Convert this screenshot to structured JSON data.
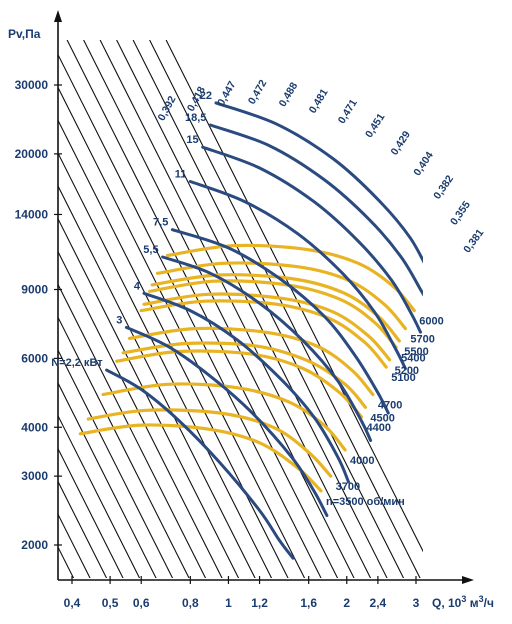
{
  "chart_data": {
    "type": "line",
    "title": "",
    "ylabel": "Pv,Па",
    "xlabel": "Q, 10³ м³/ч",
    "x_scale": "log",
    "y_scale": "log",
    "xlim": [
      0.36,
      3.5
    ],
    "ylim": [
      1800,
      38000
    ],
    "x_ticks": [
      0.4,
      0.5,
      0.6,
      0.8,
      1,
      1.2,
      1.6,
      2,
      2.4,
      3
    ],
    "x_tick_labels": [
      "0,4",
      "0,5",
      "0,6",
      "0,8",
      "1",
      "1,2",
      "1,6",
      "2",
      "2,4",
      "3"
    ],
    "y_ticks": [
      2000,
      3000,
      4000,
      6000,
      9000,
      14000,
      20000,
      30000
    ],
    "y_tick_labels": [
      "2000",
      "3000",
      "4000",
      "6000",
      "9000",
      "14000",
      "20000",
      "30000"
    ],
    "grid": false,
    "colors": {
      "speed": "#e8b424",
      "power": "#2a4a80",
      "system": "#111111",
      "text": "#1a3c6e"
    },
    "speed_curves": [
      {
        "label": "n=3500 об/мин",
        "points": [
          [
            0.42,
            3850
          ],
          [
            0.6,
            4050
          ],
          [
            0.9,
            3950
          ],
          [
            1.2,
            3650
          ],
          [
            1.5,
            3150
          ],
          [
            1.72,
            2750
          ]
        ]
      },
      {
        "label": "3700",
        "points": [
          [
            0.44,
            4200
          ],
          [
            0.62,
            4420
          ],
          [
            0.95,
            4350
          ],
          [
            1.3,
            4000
          ],
          [
            1.6,
            3450
          ],
          [
            1.82,
            3000
          ]
        ]
      },
      {
        "label": "4000",
        "points": [
          [
            0.48,
            4850
          ],
          [
            0.7,
            5150
          ],
          [
            1.05,
            5050
          ],
          [
            1.42,
            4650
          ],
          [
            1.75,
            4050
          ],
          [
            1.98,
            3500
          ]
        ]
      },
      {
        "label": "4400",
        "points": [
          [
            0.52,
            5900
          ],
          [
            0.75,
            6250
          ],
          [
            1.15,
            6150
          ],
          [
            1.55,
            5650
          ],
          [
            1.92,
            4900
          ],
          [
            2.18,
            4250
          ]
        ]
      },
      {
        "label": "4500",
        "points": [
          [
            0.54,
            6200
          ],
          [
            0.78,
            6550
          ],
          [
            1.18,
            6450
          ],
          [
            1.6,
            5900
          ],
          [
            1.98,
            5150
          ],
          [
            2.23,
            4500
          ]
        ]
      },
      {
        "label": "4700",
        "points": [
          [
            0.56,
            6750
          ],
          [
            0.82,
            7150
          ],
          [
            1.24,
            7000
          ],
          [
            1.68,
            6450
          ],
          [
            2.06,
            5600
          ],
          [
            2.33,
            4850
          ]
        ]
      },
      {
        "label": "5100",
        "points": [
          [
            0.6,
            7950
          ],
          [
            0.87,
            8400
          ],
          [
            1.33,
            8250
          ],
          [
            1.8,
            7600
          ],
          [
            2.22,
            6600
          ],
          [
            2.52,
            5700
          ]
        ]
      },
      {
        "label": "5200",
        "points": [
          [
            0.61,
            8250
          ],
          [
            0.89,
            8750
          ],
          [
            1.36,
            8550
          ],
          [
            1.84,
            7900
          ],
          [
            2.27,
            6850
          ],
          [
            2.57,
            5950
          ]
        ]
      },
      {
        "label": "5400",
        "points": [
          [
            0.63,
            8900
          ],
          [
            0.92,
            9450
          ],
          [
            1.41,
            9250
          ],
          [
            1.92,
            8500
          ],
          [
            2.36,
            7400
          ],
          [
            2.67,
            6400
          ]
        ]
      },
      {
        "label": "5500",
        "points": [
          [
            0.64,
            9250
          ],
          [
            0.94,
            9800
          ],
          [
            1.44,
            9600
          ],
          [
            1.95,
            8850
          ],
          [
            2.4,
            7700
          ],
          [
            2.72,
            6650
          ]
        ]
      },
      {
        "label": "5700",
        "points": [
          [
            0.66,
            9900
          ],
          [
            0.97,
            10500
          ],
          [
            1.49,
            10300
          ],
          [
            2.02,
            9500
          ],
          [
            2.49,
            8250
          ],
          [
            2.82,
            7150
          ]
        ]
      },
      {
        "label": "6000",
        "points": [
          [
            0.7,
            11000
          ],
          [
            1.03,
            11650
          ],
          [
            1.58,
            11400
          ],
          [
            2.14,
            10500
          ],
          [
            2.63,
            9150
          ],
          [
            2.97,
            7950
          ]
        ]
      }
    ],
    "power_curves": [
      {
        "label": "N=2,2 кВт",
        "points": [
          [
            0.49,
            5600
          ],
          [
            0.6,
            5000
          ],
          [
            0.75,
            4150
          ],
          [
            0.95,
            3250
          ],
          [
            1.2,
            2450
          ],
          [
            1.35,
            2050
          ],
          [
            1.46,
            1850
          ]
        ]
      },
      {
        "label": "3",
        "points": [
          [
            0.55,
            7200
          ],
          [
            0.7,
            6450
          ],
          [
            0.9,
            5400
          ],
          [
            1.15,
            4350
          ],
          [
            1.45,
            3350
          ],
          [
            1.65,
            2750
          ],
          [
            1.78,
            2380
          ]
        ]
      },
      {
        "label": "4",
        "points": [
          [
            0.61,
            8800
          ],
          [
            0.8,
            7950
          ],
          [
            1.05,
            6700
          ],
          [
            1.35,
            5350
          ],
          [
            1.65,
            4250
          ],
          [
            1.9,
            3350
          ],
          [
            2.02,
            2900
          ]
        ]
      },
      {
        "label": "5,5",
        "points": [
          [
            0.68,
            10900
          ],
          [
            0.9,
            9900
          ],
          [
            1.2,
            8300
          ],
          [
            1.55,
            6650
          ],
          [
            1.9,
            5250
          ],
          [
            2.18,
            4150
          ],
          [
            2.3,
            3700
          ]
        ]
      },
      {
        "label": "7,5",
        "points": [
          [
            0.72,
            12800
          ],
          [
            1.0,
            11500
          ],
          [
            1.35,
            9600
          ],
          [
            1.75,
            7700
          ],
          [
            2.1,
            6100
          ],
          [
            2.4,
            4900
          ],
          [
            2.55,
            4350
          ]
        ]
      },
      {
        "label": "11",
        "points": [
          [
            0.8,
            17000
          ],
          [
            1.1,
            15100
          ],
          [
            1.5,
            12500
          ],
          [
            1.95,
            9900
          ],
          [
            2.35,
            7900
          ],
          [
            2.65,
            6400
          ],
          [
            2.82,
            5650
          ]
        ]
      },
      {
        "label": "15",
        "points": [
          [
            0.86,
            20800
          ],
          [
            1.2,
            18400
          ],
          [
            1.65,
            15100
          ],
          [
            2.15,
            11900
          ],
          [
            2.6,
            9500
          ],
          [
            2.92,
            7800
          ],
          [
            3.08,
            7000
          ]
        ]
      },
      {
        "label": "18,5",
        "points": [
          [
            0.9,
            23700
          ],
          [
            1.27,
            21000
          ],
          [
            1.75,
            17200
          ],
          [
            2.28,
            13600
          ],
          [
            2.75,
            10900
          ],
          [
            3.1,
            8900
          ],
          [
            3.3,
            8050
          ]
        ]
      },
      {
        "label": "22",
        "points": [
          [
            0.93,
            27000
          ],
          [
            1.33,
            23800
          ],
          [
            1.85,
            19400
          ],
          [
            2.4,
            15300
          ],
          [
            2.9,
            12200
          ],
          [
            3.25,
            9900
          ],
          [
            3.45,
            8950
          ]
        ]
      }
    ],
    "efficiency_labels": [
      "0,392",
      "0,418",
      "0,447",
      "0,472",
      "0,488",
      "0,481",
      "0,471",
      "0,451",
      "0,429",
      "0,404",
      "0,382",
      "0,355",
      "0,381"
    ],
    "system_lines_count": 24
  }
}
